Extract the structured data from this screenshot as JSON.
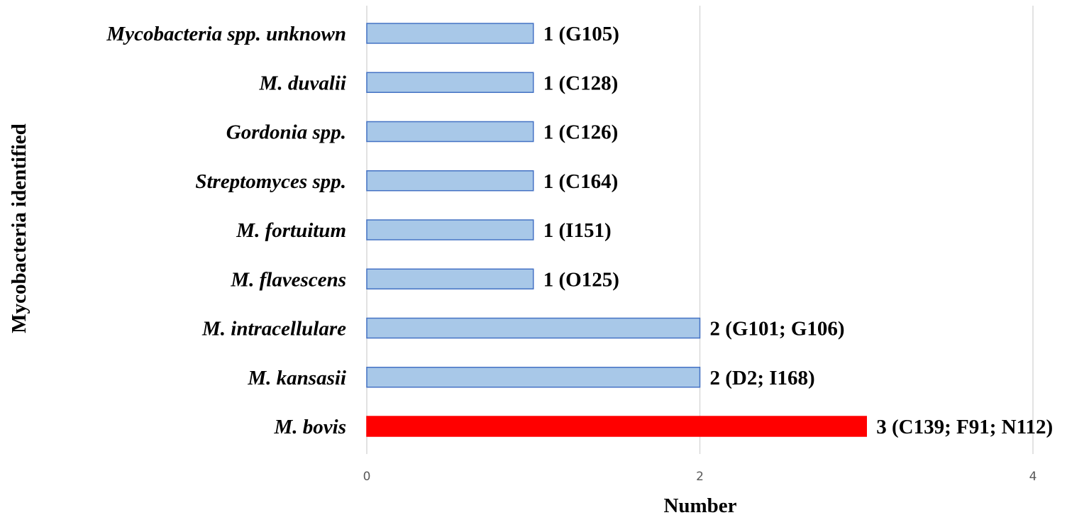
{
  "chart_data": {
    "type": "bar",
    "orientation": "horizontal",
    "categories": [
      "M. bovis",
      "M. kansasii",
      "M. intracellulare",
      "M. flavescens",
      "M. fortuitum",
      "Streptomyces spp.",
      "Gordonia spp.",
      "M. duvalii",
      "Mycobacteria spp. unknown"
    ],
    "values": [
      3,
      2,
      2,
      1,
      1,
      1,
      1,
      1,
      1
    ],
    "data_labels": [
      "3 (C139; F91; N112)",
      "2 (D2; I168)",
      "2 (G101; G106)",
      "1 (O125)",
      "1 (I151)",
      "1 (C164)",
      "1 (C126)",
      "1 (C128)",
      "1 (G105)"
    ],
    "bar_colors": [
      "#ff0000",
      "#a8c8e8",
      "#a8c8e8",
      "#a8c8e8",
      "#a8c8e8",
      "#a8c8e8",
      "#a8c8e8",
      "#a8c8e8",
      "#a8c8e8"
    ],
    "bar_edge_colors": [
      "#ff0000",
      "#4472c4",
      "#4472c4",
      "#4472c4",
      "#4472c4",
      "#4472c4",
      "#4472c4",
      "#4472c4",
      "#4472c4"
    ],
    "xlim": [
      0,
      4
    ],
    "x_ticks": [
      0,
      2,
      4
    ],
    "x_tick_labels": [
      "0",
      "2",
      "4"
    ],
    "xlabel": "Number",
    "ylabel": "Mycobacteria identified",
    "grid": "vertical",
    "grid_color": "#d9d9d9",
    "legend": "none"
  }
}
